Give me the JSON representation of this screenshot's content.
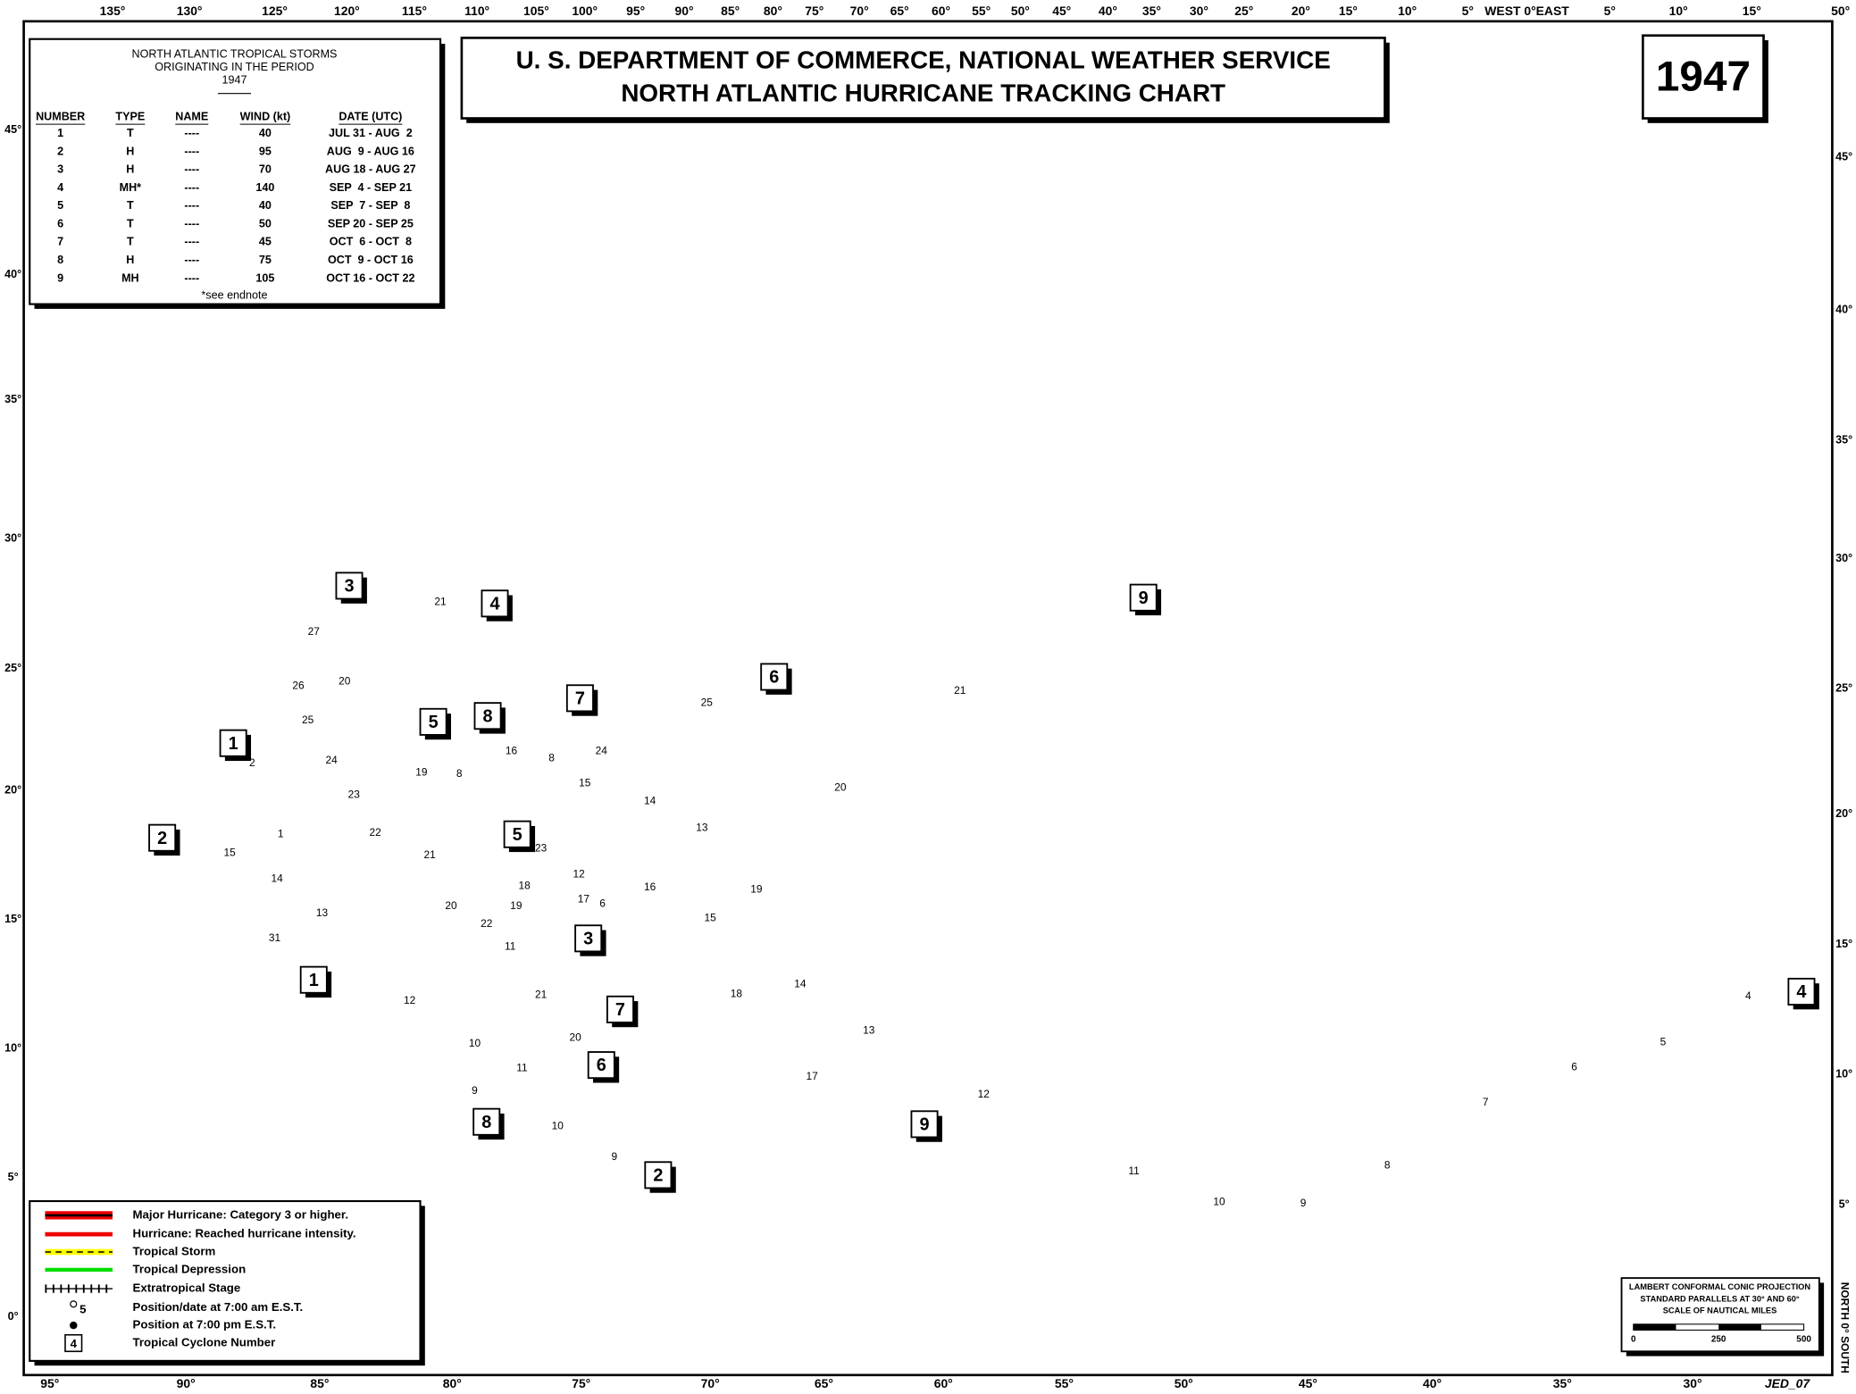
{
  "header": {
    "title_line1": "U. S. DEPARTMENT OF COMMERCE, NATIONAL WEATHER SERVICE",
    "title_line2": "NORTH ATLANTIC HURRICANE TRACKING CHART",
    "year": "1947"
  },
  "table": {
    "title_lines": [
      "NORTH ATLANTIC TROPICAL STORMS",
      "ORIGINATING IN THE PERIOD",
      "1947"
    ],
    "columns": [
      "NUMBER",
      "TYPE",
      "NAME",
      "WIND (kt)",
      "DATE (UTC)"
    ],
    "rows": [
      [
        1,
        "T",
        "----",
        40,
        "JUL 31 - AUG  2"
      ],
      [
        2,
        "H",
        "----",
        95,
        "AUG  9 - AUG 16"
      ],
      [
        3,
        "H",
        "----",
        70,
        "AUG 18 - AUG 27"
      ],
      [
        4,
        "MH*",
        "----",
        140,
        "SEP  4 - SEP 21"
      ],
      [
        5,
        "T",
        "----",
        40,
        "SEP  7 - SEP  8"
      ],
      [
        6,
        "T",
        "----",
        50,
        "SEP 20 - SEP 25"
      ],
      [
        7,
        "T",
        "----",
        45,
        "OCT  6 - OCT  8"
      ],
      [
        8,
        "H",
        "----",
        75,
        "OCT  9 - OCT 16"
      ],
      [
        9,
        "MH",
        "----",
        105,
        "OCT 16 - OCT 22"
      ]
    ],
    "footnote": "*see endnote"
  },
  "legend": {
    "items": [
      "Major Hurricane: Category 3 or higher.",
      "Hurricane: Reached hurricane intensity.",
      "Tropical Storm",
      "Tropical Depression",
      "Extratropical Stage",
      "Position/date at 7:00 am E.S.T.",
      "Position at 7:00 pm E.S.T.",
      "Tropical Cyclone Number"
    ],
    "sample_date": "5",
    "sample_number": "4"
  },
  "projection": {
    "lines": [
      "LAMBERT CONFORMAL CONIC PROJECTION",
      "STANDARD PARALLELS AT 30° AND 60°",
      "SCALE OF NAUTICAL MILES"
    ],
    "scale": [
      0,
      250,
      500
    ]
  },
  "grid_labels": {
    "top": [
      "135°",
      "130°",
      "125°",
      "120°",
      "115°",
      "110°",
      "105°",
      "100°",
      "95°",
      "90°",
      "85°",
      "80°",
      "75°",
      "70°",
      "65°",
      "60°",
      "55°",
      "50°",
      "45°",
      "40°",
      "35°",
      "30°",
      "25°",
      "20°",
      "15°",
      "10°",
      "5°",
      "WEST 0°EAST",
      "5°",
      "10°",
      "15°",
      "50°"
    ],
    "bottom": [
      "95°",
      "90°",
      "85°",
      "80°",
      "75°",
      "70°",
      "65°",
      "60°",
      "55°",
      "50°",
      "45°",
      "40°",
      "35°",
      "30°",
      "JED_07"
    ],
    "left": [
      "45°",
      "40°",
      "35°",
      "30°",
      "25°",
      "20°",
      "15°",
      "10°",
      "5°",
      "0°"
    ],
    "right": [
      "45°",
      "40°",
      "35°",
      "30°",
      "25°",
      "20°",
      "15°",
      "10°",
      "5°"
    ],
    "hemisphere": "NORTH 0° SOUTH"
  },
  "cyclone_boxes": [
    "1",
    "1",
    "2",
    "2",
    "3",
    "3",
    "4",
    "4",
    "5",
    "5",
    "6",
    "6",
    "7",
    "7",
    "8",
    "8",
    "9",
    "9"
  ],
  "track_labels": [
    "2",
    "1",
    "31",
    "9",
    "10",
    "11",
    "12",
    "13",
    "14",
    "15",
    "27",
    "26",
    "25",
    "24",
    "23",
    "22",
    "21",
    "20",
    "19",
    "18",
    "17",
    "16",
    "15",
    "14",
    "13",
    "12",
    "11",
    "10",
    "9",
    "8",
    "7",
    "6",
    "5",
    "4",
    "19",
    "20",
    "21",
    "8",
    "23",
    "22",
    "12",
    "11",
    "9",
    "10",
    "20",
    "21",
    "24",
    "25",
    "6",
    "16",
    "8",
    "15",
    "14",
    "13",
    "17",
    "18",
    "19",
    "20",
    "21"
  ]
}
